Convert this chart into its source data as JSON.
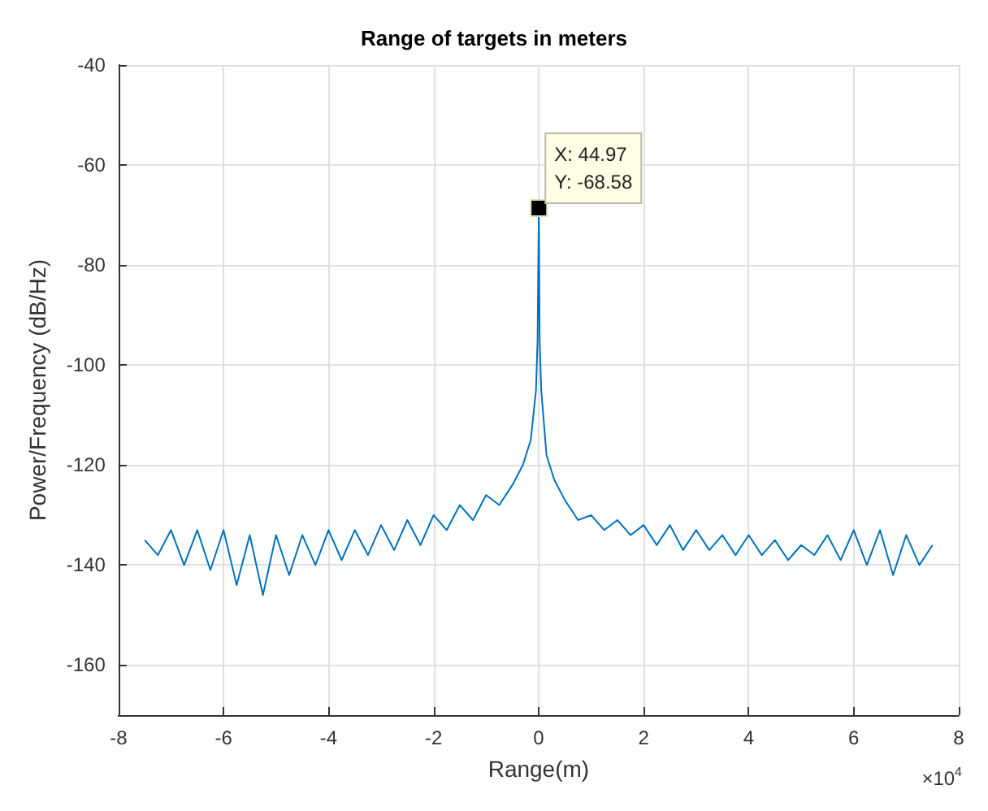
{
  "chart_data": {
    "type": "line",
    "title": "Range of targets in meters",
    "xlabel": "Range(m)",
    "ylabel": "Power/Frequency (dB/Hz)",
    "xlim": [
      -8,
      8
    ],
    "xticks": [
      -8,
      -6,
      -4,
      -2,
      0,
      2,
      4,
      6,
      8
    ],
    "ylim": [
      -170,
      -40
    ],
    "yticks": [
      -160,
      -140,
      -120,
      -100,
      -80,
      -60,
      -40
    ],
    "grid": true,
    "line_style": "solid",
    "marker": "none",
    "annotations": [
      {
        "text": "X: 44.97\nY: -68.58",
        "x": 0.004497,
        "y": -68.58
      },
      "×10$^{4}$"
    ],
    "series": [
      {
        "color": "#0072bd",
        "x": [
          -7.5,
          -7.25,
          -7.0,
          -6.75,
          -6.5,
          -6.25,
          -6.0,
          -5.75,
          -5.5,
          -5.25,
          -5.0,
          -4.75,
          -4.5,
          -4.25,
          -4.0,
          -3.75,
          -3.5,
          -3.25,
          -3.0,
          -2.75,
          -2.5,
          -2.25,
          -2.0,
          -1.75,
          -1.5,
          -1.25,
          -1.0,
          -0.75,
          -0.5,
          -0.3,
          -0.15,
          -0.05,
          -0.02,
          0.004497,
          0.02,
          0.05,
          0.15,
          0.3,
          0.5,
          0.75,
          1.0,
          1.25,
          1.5,
          1.75,
          2.0,
          2.25,
          2.5,
          2.75,
          3.0,
          3.25,
          3.5,
          3.75,
          4.0,
          4.25,
          4.5,
          4.75,
          5.0,
          5.25,
          5.5,
          5.75,
          6.0,
          6.25,
          6.5,
          6.75,
          7.0,
          7.25,
          7.5
        ],
        "values": [
          -135,
          -138,
          -133,
          -140,
          -133,
          -141,
          -133,
          -144,
          -134,
          -146,
          -134,
          -142,
          -134,
          -140,
          -133,
          -139,
          -133,
          -138,
          -132,
          -137,
          -131,
          -136,
          -130,
          -133,
          -128,
          -131,
          -126,
          -128,
          -124,
          -120,
          -115,
          -105,
          -95,
          -68.58,
          -95,
          -105,
          -118,
          -123,
          -127,
          -131,
          -130,
          -133,
          -131,
          -134,
          -132,
          -136,
          -132,
          -137,
          -133,
          -137,
          -134,
          -138,
          -134,
          -138,
          -135,
          -139,
          -136,
          -138,
          -134,
          -139,
          -133,
          -140,
          -133,
          -142,
          -134,
          -140,
          -136
        ]
      }
    ]
  }
}
